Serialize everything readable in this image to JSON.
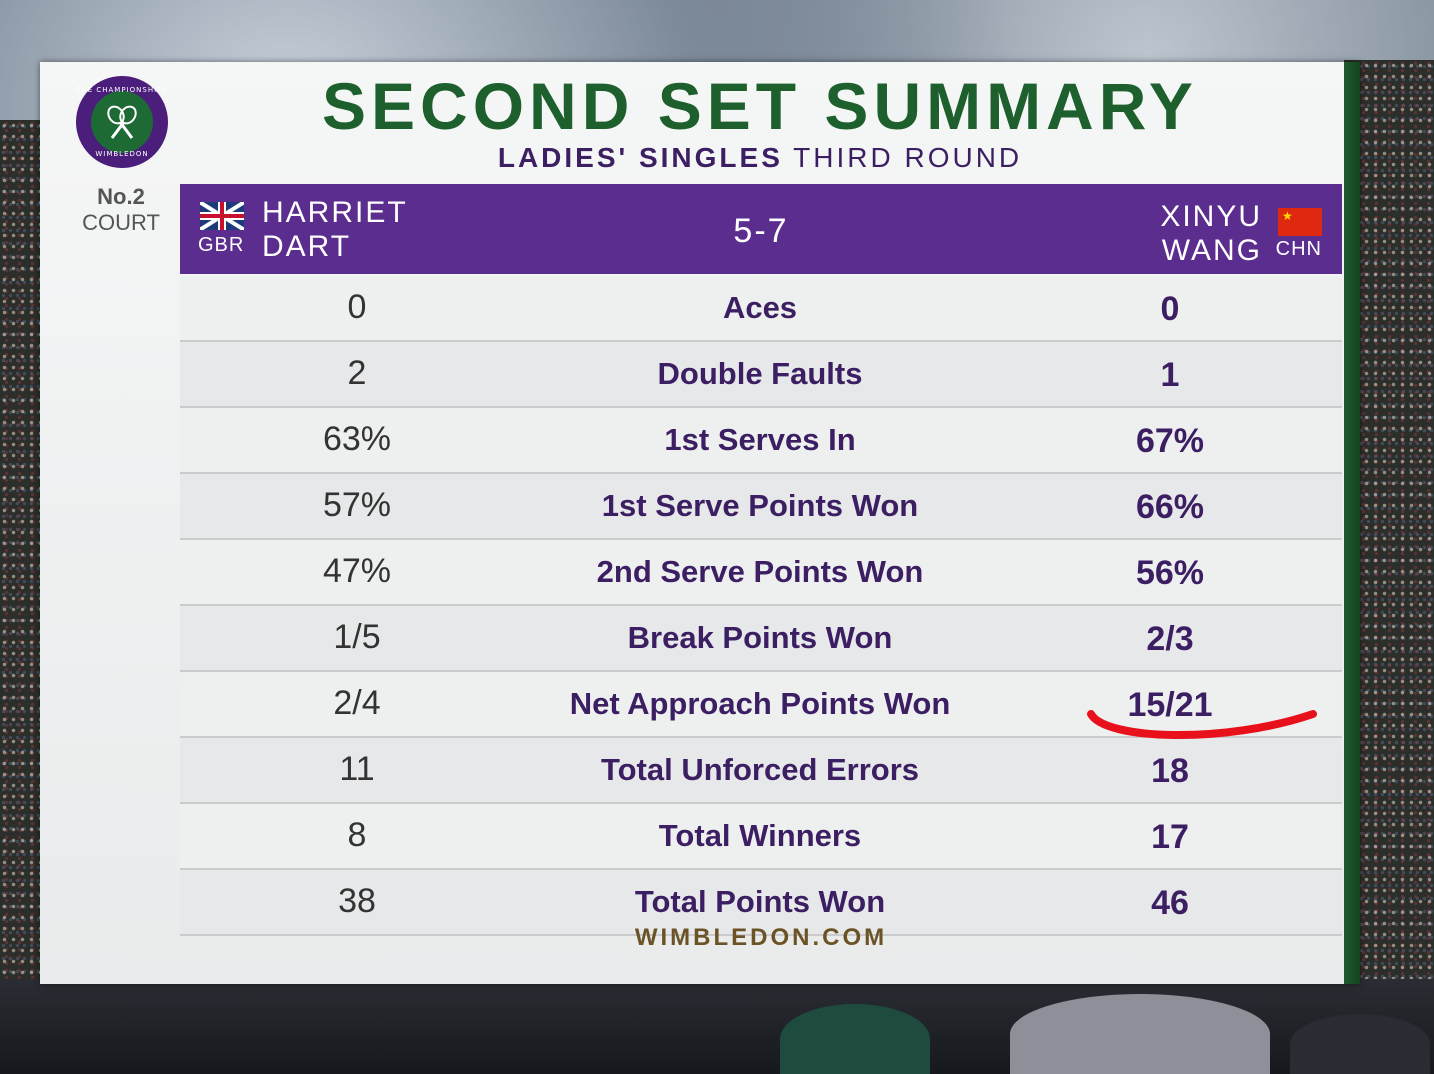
{
  "header": {
    "title": "SECOND SET SUMMARY",
    "subtitle_bold": "LADIES' SINGLES",
    "subtitle_rest": "THIRD ROUND",
    "court_number": "No.2",
    "court_word": "COURT",
    "logo_text_top": "THE CHAMPIONSHIPS",
    "logo_text_bottom": "WIMBLEDON"
  },
  "match": {
    "player1": {
      "first": "HARRIET",
      "last": "DART",
      "code": "GBR"
    },
    "player2": {
      "first": "XINYU",
      "last": "WANG",
      "code": "CHN"
    },
    "score": "5-7"
  },
  "stats": [
    {
      "label": "Aces",
      "p1": "0",
      "p2": "0"
    },
    {
      "label": "Double Faults",
      "p1": "2",
      "p2": "1"
    },
    {
      "label": "1st Serves In",
      "p1": "63%",
      "p2": "67%"
    },
    {
      "label": "1st Serve Points Won",
      "p1": "57%",
      "p2": "66%"
    },
    {
      "label": "2nd Serve Points Won",
      "p1": "47%",
      "p2": "56%"
    },
    {
      "label": "Break Points Won",
      "p1": "1/5",
      "p2": "2/3"
    },
    {
      "label": "Net Approach Points Won",
      "p1": "2/4",
      "p2": "15/21"
    },
    {
      "label": "Total Unforced Errors",
      "p1": "11",
      "p2": "18"
    },
    {
      "label": "Total Winners",
      "p1": "8",
      "p2": "17"
    },
    {
      "label": "Total Points Won",
      "p1": "38",
      "p2": "46"
    }
  ],
  "footer": {
    "site": "WIMBLEDON.COM"
  },
  "colors": {
    "purple": "#5a2d8e",
    "green": "#1d5f2d",
    "annotation": "#e8101a"
  }
}
